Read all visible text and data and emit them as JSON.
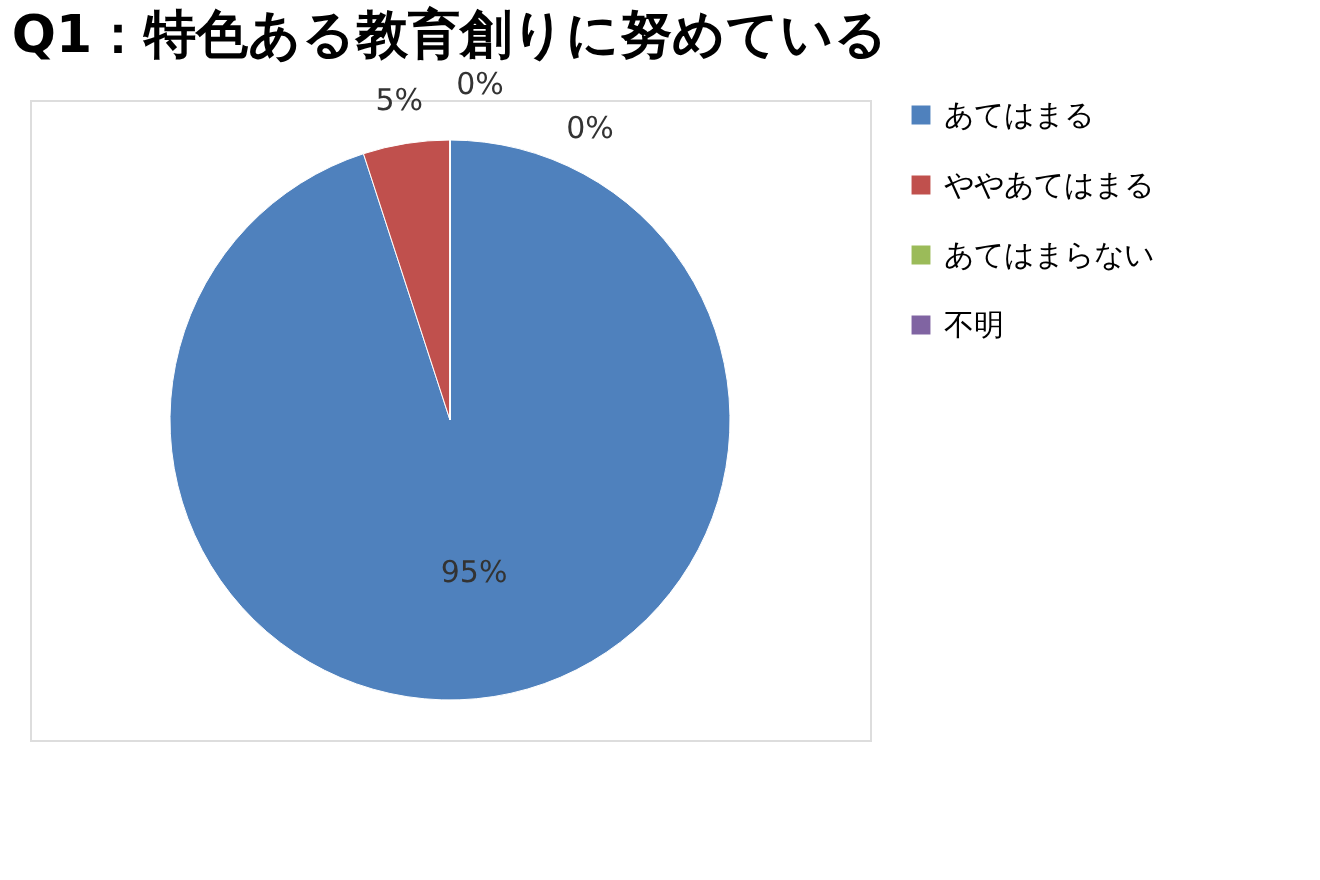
{
  "chart_data": {
    "type": "pie",
    "title": "Q1：特色ある教育創りに努めている",
    "categories": [
      "あてはまる",
      "ややあてはまる",
      "あてはまらない",
      "不明"
    ],
    "values": [
      95,
      5,
      0,
      0
    ],
    "colors": [
      "#4f81bd",
      "#c0504d",
      "#9bbb59",
      "#8064a2"
    ],
    "value_labels": [
      "95%",
      "5%",
      "0%",
      "0%"
    ],
    "legend": "right"
  }
}
